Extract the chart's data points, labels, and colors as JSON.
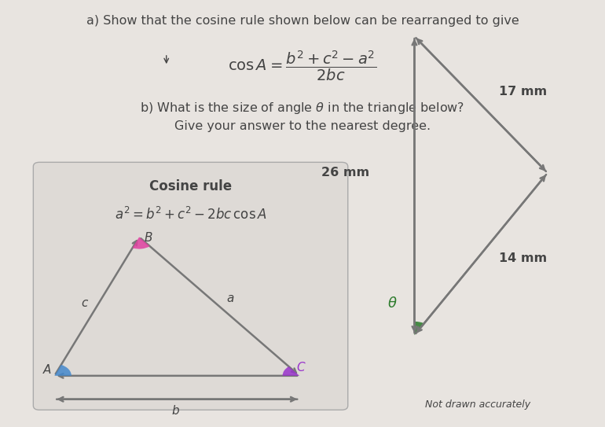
{
  "bg_color": "#e8e4e0",
  "title_a": "a) Show that the cosine rule shown below can be rearranged to give",
  "title_b_line1": "b) What is the size of angle $\\theta$ in the triangle below?",
  "title_b_line2": "Give your answer to the nearest degree.",
  "box_title": "Cosine rule",
  "color_A_angle": "#4488cc",
  "color_B_angle": "#e040a0",
  "color_C_angle": "#9933cc",
  "color_theta_angle": "#2a7a2a",
  "not_drawn": "Not drawn accurately",
  "text_color": "#444444",
  "box_bg": "#dedad6",
  "arrow_color": "#777777"
}
